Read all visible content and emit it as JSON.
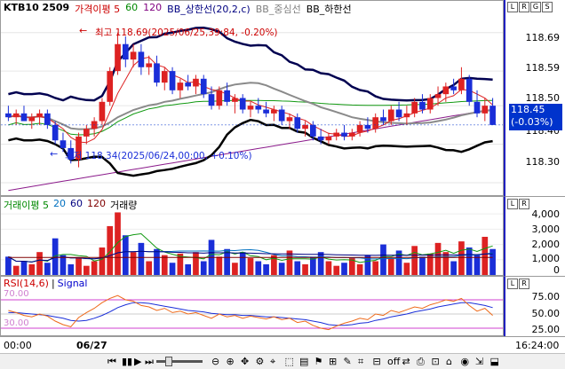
{
  "legend_top": {
    "symbol": "KTB10  2509",
    "items": [
      {
        "label": "가격이평 5",
        "color": "#cc0000"
      },
      {
        "label": "60",
        "color": "#008800"
      },
      {
        "label": "120",
        "color": "#800080"
      },
      {
        "label": "BB_상한선(20,2,c)",
        "color": "#000080"
      },
      {
        "label": "BB_중심선",
        "color": "#808080"
      },
      {
        "label": "BB_하한선",
        "color": "#000000"
      }
    ]
  },
  "price_axis": {
    "ticks": [
      "118.69",
      "118.59",
      "118.50",
      "118.40",
      "118.30"
    ],
    "current_price": "118.45",
    "current_change": "(-0.03%)"
  },
  "annotations": {
    "high": "최고 118.69(2025/06/25,39:84, -0.20%)",
    "low": "최저 118.34(2025/06/24,00:00, +0.10%)"
  },
  "volume_legend": {
    "items": [
      {
        "label": "거래이평 5",
        "color": "#008800"
      },
      {
        "label": "20",
        "color": "#0070c0"
      },
      {
        "label": "60",
        "color": "#000080"
      },
      {
        "label": "120",
        "color": "#800000"
      },
      {
        "label": "거래량",
        "color": "#000000"
      }
    ]
  },
  "volume_axis": {
    "ticks": [
      "4,000",
      "3,000",
      "2,000",
      "1,000",
      "0"
    ]
  },
  "rsi_legend": {
    "items": [
      {
        "label": "RSI(14,6)",
        "color": "#cc0000"
      },
      {
        "label": "Signal",
        "color": "#0000cc"
      }
    ],
    "level_high": "70.00",
    "level_low": "30.00"
  },
  "rsi_axis": {
    "ticks": [
      "75.00",
      "50.00",
      "25.00"
    ]
  },
  "time_axis": {
    "left": "00:00",
    "mid": "06/27",
    "right": "16:24:00"
  },
  "right_header": {
    "buttons": [
      "L",
      "R",
      "G",
      "S"
    ]
  },
  "toolbar": {
    "left_glyphs": [
      "⏮",
      "▮▮",
      "▶",
      "⏭"
    ],
    "glyphs": [
      "⊖",
      "⊕",
      "✥",
      "⚙",
      "⌖",
      "⬚",
      "▤",
      "⚑",
      "⊞",
      "✎",
      "⌗",
      "⊟",
      "off",
      "⇄",
      "⎙",
      "⊡",
      "⌂",
      "◉",
      "⇲",
      "⬓"
    ]
  },
  "colors": {
    "up": "#dd2222",
    "down": "#1a2ed8",
    "bb_upper": "#000050",
    "bb_lower": "#000000",
    "bb_mid": "#8a8a8a",
    "ma5": "#dd2222",
    "ma60": "#119911",
    "ma120": "#8b1a8b"
  },
  "chart_data": {
    "type": "candlestick",
    "ylim": [
      118.27,
      118.74
    ],
    "candles": [
      [
        118.48,
        118.5,
        118.46,
        118.47
      ],
      [
        118.47,
        118.49,
        118.45,
        118.48
      ],
      [
        118.48,
        118.5,
        118.46,
        118.46
      ],
      [
        118.46,
        118.48,
        118.44,
        118.47
      ],
      [
        118.47,
        118.49,
        118.45,
        118.48
      ],
      [
        118.48,
        118.49,
        118.44,
        118.45
      ],
      [
        118.45,
        118.46,
        118.4,
        118.41
      ],
      [
        118.41,
        118.43,
        118.38,
        118.39
      ],
      [
        118.39,
        118.41,
        118.35,
        118.36
      ],
      [
        118.36,
        118.43,
        118.34,
        118.42
      ],
      [
        118.42,
        118.45,
        118.4,
        118.44
      ],
      [
        118.44,
        118.47,
        118.42,
        118.46
      ],
      [
        118.46,
        118.52,
        118.45,
        118.51
      ],
      [
        118.51,
        118.6,
        118.5,
        118.59
      ],
      [
        118.59,
        118.69,
        118.58,
        118.66
      ],
      [
        118.66,
        118.68,
        118.6,
        118.62
      ],
      [
        118.62,
        118.66,
        118.6,
        118.64
      ],
      [
        118.64,
        118.66,
        118.58,
        118.6
      ],
      [
        118.6,
        118.63,
        118.58,
        118.61
      ],
      [
        118.61,
        118.63,
        118.55,
        118.56
      ],
      [
        118.56,
        118.6,
        118.54,
        118.59
      ],
      [
        118.59,
        118.6,
        118.53,
        118.54
      ],
      [
        118.54,
        118.57,
        118.52,
        118.56
      ],
      [
        118.56,
        118.58,
        118.54,
        118.55
      ],
      [
        118.55,
        118.58,
        118.53,
        118.57
      ],
      [
        118.57,
        118.58,
        118.52,
        118.53
      ],
      [
        118.53,
        118.55,
        118.49,
        118.5
      ],
      [
        118.5,
        118.55,
        118.49,
        118.54
      ],
      [
        118.54,
        118.56,
        118.5,
        118.51
      ],
      [
        118.51,
        118.53,
        118.48,
        118.52
      ],
      [
        118.52,
        118.53,
        118.48,
        118.49
      ],
      [
        118.49,
        118.51,
        118.47,
        118.5
      ],
      [
        118.5,
        118.52,
        118.48,
        118.49
      ],
      [
        118.49,
        118.51,
        118.47,
        118.48
      ],
      [
        118.48,
        118.5,
        118.46,
        118.49
      ],
      [
        118.49,
        118.5,
        118.45,
        118.46
      ],
      [
        118.46,
        118.48,
        118.44,
        118.47
      ],
      [
        118.47,
        118.48,
        118.43,
        118.44
      ],
      [
        118.44,
        118.46,
        118.42,
        118.45
      ],
      [
        118.45,
        118.46,
        118.41,
        118.42
      ],
      [
        118.42,
        118.44,
        118.4,
        118.41
      ],
      [
        118.41,
        118.43,
        118.4,
        118.42
      ],
      [
        118.42,
        118.44,
        118.41,
        118.43
      ],
      [
        118.43,
        118.45,
        118.41,
        118.42
      ],
      [
        118.42,
        118.44,
        118.41,
        118.43
      ],
      [
        118.43,
        118.46,
        118.42,
        118.45
      ],
      [
        118.45,
        118.47,
        118.43,
        118.44
      ],
      [
        118.44,
        118.48,
        118.43,
        118.47
      ],
      [
        118.47,
        118.49,
        118.45,
        118.46
      ],
      [
        118.46,
        118.5,
        118.45,
        118.49
      ],
      [
        118.49,
        118.51,
        118.46,
        118.47
      ],
      [
        118.47,
        118.5,
        118.45,
        118.48
      ],
      [
        118.48,
        118.52,
        118.47,
        118.51
      ],
      [
        118.51,
        118.53,
        118.48,
        118.49
      ],
      [
        118.49,
        118.53,
        118.48,
        118.52
      ],
      [
        118.52,
        118.55,
        118.5,
        118.53
      ],
      [
        118.53,
        118.56,
        118.51,
        118.55
      ],
      [
        118.55,
        118.57,
        118.53,
        118.54
      ],
      [
        118.54,
        118.6,
        118.53,
        118.57
      ],
      [
        118.57,
        118.58,
        118.5,
        118.51
      ],
      [
        118.51,
        118.54,
        118.47,
        118.48
      ],
      [
        118.48,
        118.52,
        118.46,
        118.5
      ],
      [
        118.5,
        118.52,
        118.45,
        118.45
      ]
    ],
    "volume": [
      1200,
      600,
      900,
      700,
      1500,
      800,
      2400,
      1300,
      700,
      1100,
      600,
      900,
      1800,
      3200,
      4100,
      2600,
      1500,
      2100,
      900,
      1700,
      1300,
      800,
      1400,
      700,
      1500,
      900,
      2300,
      1200,
      1700,
      800,
      1500,
      1100,
      900,
      700,
      1300,
      800,
      1600,
      900,
      700,
      1200,
      1500,
      900,
      600,
      800,
      1100,
      700,
      1300,
      900,
      2000,
      1100,
      1600,
      800,
      1900,
      1200,
      1400,
      2100,
      1500,
      900,
      2200,
      1800,
      1300,
      2500,
      1700
    ],
    "rsi": [
      55,
      52,
      48,
      46,
      50,
      47,
      40,
      35,
      32,
      45,
      52,
      58,
      66,
      72,
      76,
      70,
      68,
      62,
      60,
      55,
      58,
      52,
      54,
      50,
      52,
      48,
      44,
      50,
      46,
      48,
      44,
      47,
      45,
      43,
      46,
      42,
      44,
      38,
      40,
      34,
      30,
      28,
      33,
      37,
      40,
      44,
      42,
      50,
      48,
      55,
      52,
      56,
      60,
      58,
      63,
      66,
      70,
      68,
      72,
      62,
      54,
      58,
      48
    ],
    "signal": [
      52,
      52,
      51,
      50,
      49,
      48,
      46,
      44,
      41,
      40,
      41,
      44,
      48,
      53,
      59,
      63,
      66,
      66,
      65,
      63,
      61,
      59,
      57,
      55,
      54,
      53,
      51,
      50,
      49,
      49,
      48,
      48,
      47,
      46,
      46,
      45,
      44,
      43,
      42,
      40,
      38,
      35,
      34,
      34,
      35,
      37,
      38,
      41,
      43,
      46,
      48,
      50,
      53,
      55,
      57,
      60,
      62,
      64,
      66,
      66,
      64,
      62,
      59
    ]
  }
}
